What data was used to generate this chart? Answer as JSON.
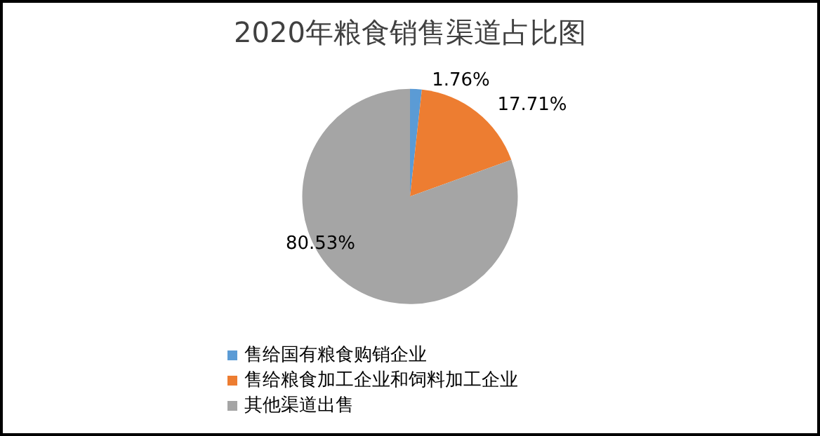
{
  "chart_data": {
    "type": "pie",
    "title": "2020年粮食销售渠道占比图",
    "categories": [
      "售给国有粮食购销企业",
      "售给粮食加工企业和饲料加工企业",
      "其他渠道出售"
    ],
    "values": [
      1.76,
      17.71,
      80.53
    ],
    "colors": [
      "#5b9bd5",
      "#ed7d31",
      "#a5a5a5"
    ],
    "value_labels": [
      "1.76%",
      "17.71%",
      "80.53%"
    ],
    "legend": "bottom left"
  }
}
